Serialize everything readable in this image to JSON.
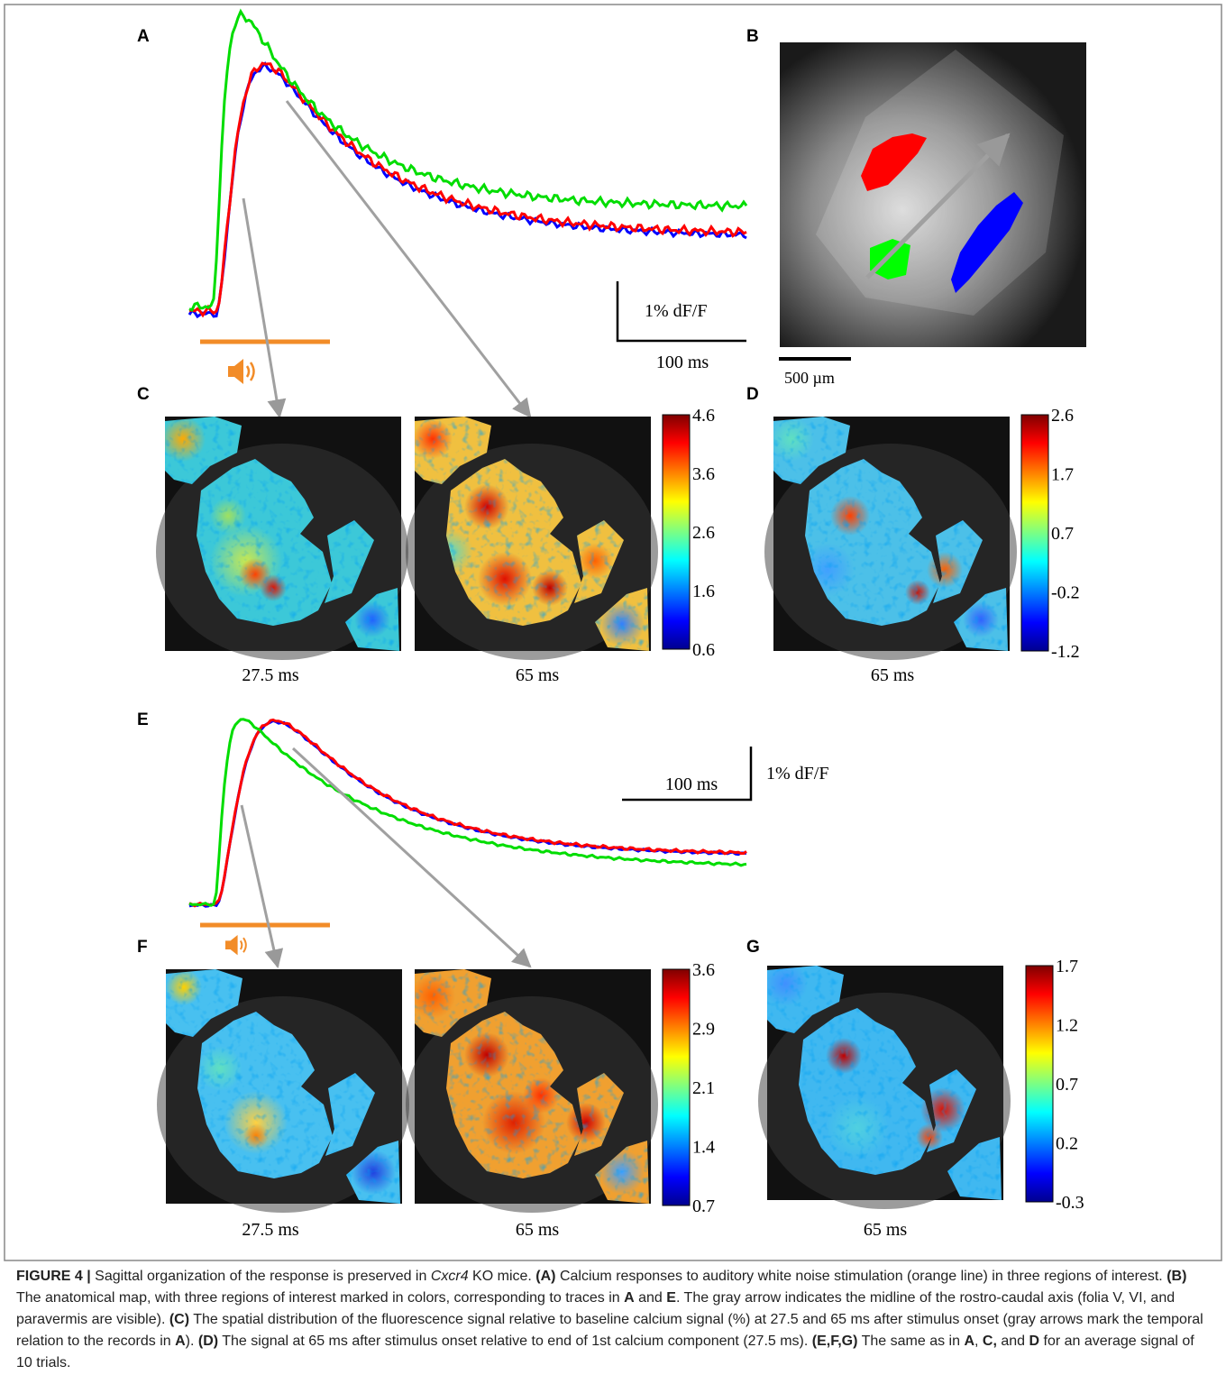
{
  "panels": {
    "A": {
      "label": "A",
      "scale_y": "1% dF/F",
      "scale_x": "100 ms"
    },
    "B": {
      "label": "B",
      "scale": "500 µm"
    },
    "C": {
      "label": "C",
      "times": [
        "27.5 ms",
        "65 ms"
      ],
      "colorbar": [
        4.6,
        3.6,
        2.6,
        1.6,
        0.6
      ]
    },
    "D": {
      "label": "D",
      "time": "65 ms",
      "colorbar": [
        2.6,
        1.7,
        0.7,
        -0.2,
        -1.2
      ]
    },
    "E": {
      "label": "E",
      "scale_x": "100 ms",
      "scale_y": "1% dF/F"
    },
    "F": {
      "label": "F",
      "times": [
        "27.5 ms",
        "65 ms"
      ],
      "colorbar": [
        3.6,
        2.9,
        2.1,
        1.4,
        0.7
      ]
    },
    "G": {
      "label": "G",
      "time": "65 ms",
      "colorbar": [
        1.7,
        1.2,
        0.7,
        0.2,
        -0.3
      ]
    }
  },
  "caption": [
    "FIGURE 4 |",
    " Sagittal organization of the response is preserved in ",
    "Cxcr4",
    " KO mice. ",
    "(A)",
    " Calcium responses to auditory white noise stimulation (orange line) in three regions of interest. ",
    "(B)",
    " The anatomical map, with three regions of interest marked in colors, corresponding to traces in ",
    "A",
    " and ",
    "E",
    ". The gray arrow indicates the midline of the rostro-caudal axis (folia V, VI, and paravermis are visible). ",
    "(C)",
    " The spatial distribution of the fluorescence signal relative to baseline calcium signal (%) at 27.5 and 65 ms after stimulus onset (gray arrows mark the temporal relation to the records in ",
    "A",
    "). ",
    "(D)",
    " The signal at 65 ms after stimulus onset relative to end of 1st calcium component (27.5 ms). ",
    "(E,F,G)",
    " The same as in ",
    "A",
    ", ",
    "C,",
    " and ",
    "D",
    " for an average signal of 10 trials."
  ]
}
